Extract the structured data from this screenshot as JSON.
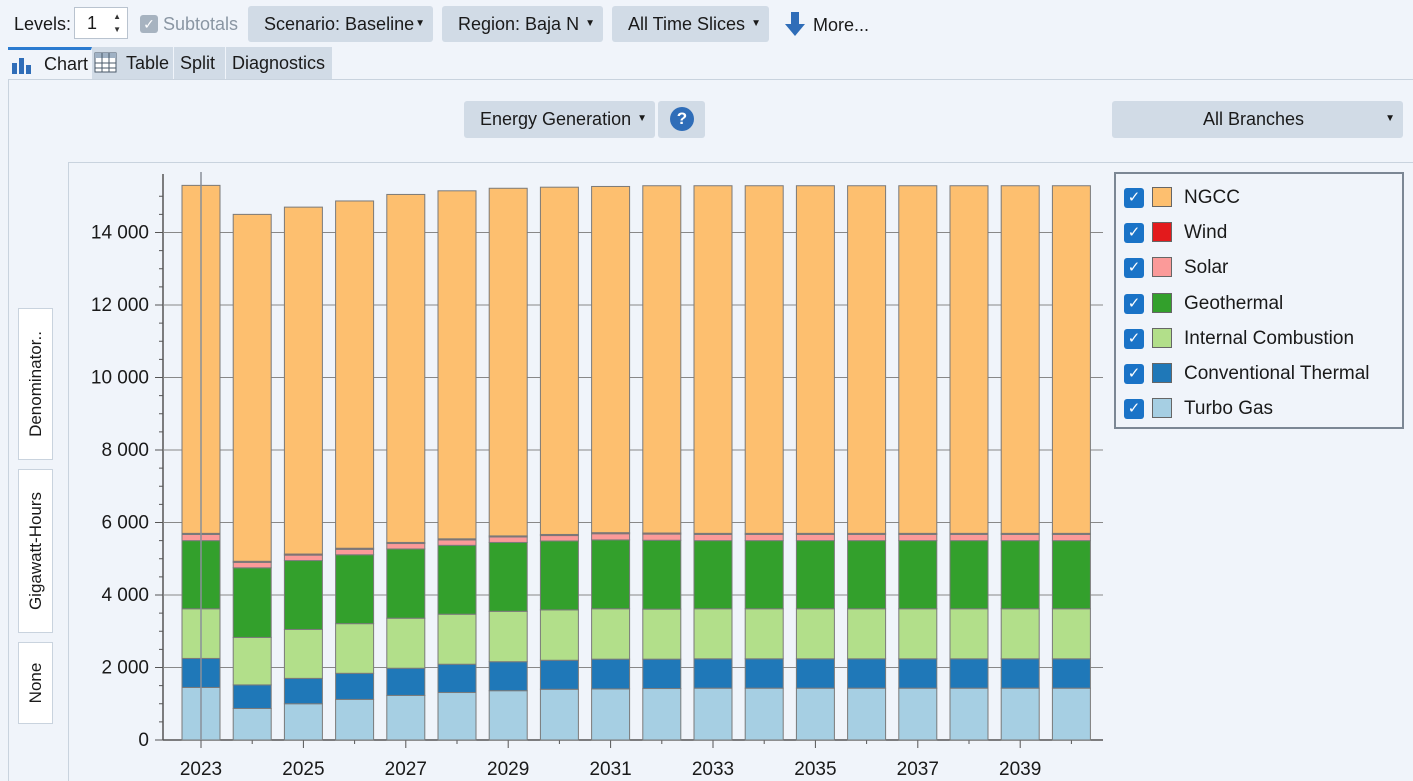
{
  "toolbar": {
    "levels_label": "Levels:",
    "levels_value": "1",
    "subtotals_label": "Subtotals",
    "scenario": "Scenario: Baseline",
    "region": "Region: Baja N",
    "time_slices": "All Time Slices",
    "more": "More..."
  },
  "tabs": [
    "Chart",
    "Table",
    "Split",
    "Diagnostics"
  ],
  "controls": {
    "variable": "Energy Generation",
    "help": "?",
    "branches": "All Branches"
  },
  "side_buttons": [
    "Denominator..",
    "Gigawatt-Hours",
    "None"
  ],
  "chart_data": {
    "type": "bar",
    "stacked": true,
    "ylim": [
      0,
      15500
    ],
    "yticks": [
      0,
      2000,
      4000,
      6000,
      8000,
      10000,
      12000,
      14000
    ],
    "ytick_labels": [
      "0",
      "2 000",
      "4 000",
      "6 000",
      "8 000",
      "10 000",
      "12 000",
      "14 000"
    ],
    "xtick_labels": [
      "2023",
      "2025",
      "2027",
      "2029",
      "2031",
      "2033",
      "2035",
      "2037",
      "2039"
    ],
    "categories": [
      "2023",
      "2024",
      "2025",
      "2026",
      "2027",
      "2028",
      "2029",
      "2030",
      "2031",
      "2032",
      "2033",
      "2034",
      "2035",
      "2036",
      "2037",
      "2038",
      "2039",
      "2040"
    ],
    "series": [
      {
        "name": "Turbo Gas",
        "color": "#a6cfe3",
        "values": [
          1450,
          870,
          1000,
          1120,
          1230,
          1310,
          1360,
          1400,
          1410,
          1420,
          1430,
          1430,
          1430,
          1430,
          1430,
          1430,
          1430,
          1430
        ]
      },
      {
        "name": "Conventional Thermal",
        "color": "#1f78b8",
        "values": [
          800,
          650,
          700,
          720,
          750,
          780,
          800,
          800,
          820,
          810,
          810,
          810,
          810,
          810,
          810,
          810,
          810,
          810
        ]
      },
      {
        "name": "Internal Combustion",
        "color": "#b2df8a",
        "values": [
          1370,
          1310,
          1350,
          1370,
          1380,
          1380,
          1390,
          1390,
          1390,
          1380,
          1380,
          1380,
          1380,
          1380,
          1380,
          1380,
          1380,
          1380
        ]
      },
      {
        "name": "Geothermal",
        "color": "#33a02c",
        "values": [
          1880,
          1920,
          1900,
          1900,
          1910,
          1900,
          1900,
          1900,
          1900,
          1900,
          1880,
          1880,
          1880,
          1880,
          1880,
          1880,
          1880,
          1880
        ]
      },
      {
        "name": "Solar",
        "color": "#fb9a99",
        "values": [
          170,
          150,
          150,
          150,
          150,
          150,
          150,
          150,
          170,
          170,
          170,
          170,
          170,
          170,
          170,
          170,
          170,
          170
        ]
      },
      {
        "name": "Wind",
        "color": "#e31a1c",
        "values": [
          30,
          30,
          30,
          30,
          30,
          30,
          30,
          30,
          30,
          30,
          30,
          30,
          30,
          30,
          30,
          30,
          30,
          30
        ]
      },
      {
        "name": "NGCC",
        "color": "#fdbf6f",
        "values": [
          9600,
          9570,
          9570,
          9580,
          9600,
          9600,
          9590,
          9580,
          9550,
          9580,
          9590,
          9590,
          9590,
          9590,
          9590,
          9590,
          9590,
          9590
        ]
      }
    ],
    "legend_order": [
      "NGCC",
      "Wind",
      "Solar",
      "Geothermal",
      "Internal Combustion",
      "Conventional Thermal",
      "Turbo Gas"
    ],
    "legend": "top-right",
    "grid": false
  }
}
